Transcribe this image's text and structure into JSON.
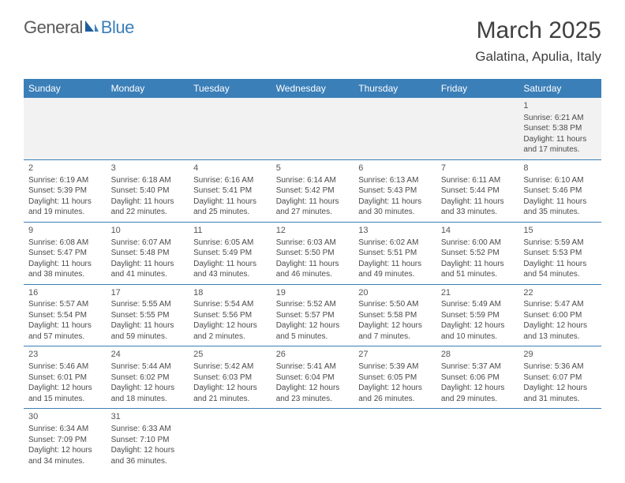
{
  "logo": {
    "general": "General",
    "blue": "Blue"
  },
  "title": "March 2025",
  "location": "Galatina, Apulia, Italy",
  "colors": {
    "header_bg": "#3b7fb8",
    "header_text": "#ffffff",
    "cell_border": "#3b7fb8",
    "empty_bg": "#f2f2f2",
    "text": "#4a4a4a"
  },
  "day_headers": [
    "Sunday",
    "Monday",
    "Tuesday",
    "Wednesday",
    "Thursday",
    "Friday",
    "Saturday"
  ],
  "weeks": [
    [
      null,
      null,
      null,
      null,
      null,
      null,
      {
        "n": "1",
        "sr": "Sunrise: 6:21 AM",
        "ss": "Sunset: 5:38 PM",
        "dl": "Daylight: 11 hours and 17 minutes."
      }
    ],
    [
      {
        "n": "2",
        "sr": "Sunrise: 6:19 AM",
        "ss": "Sunset: 5:39 PM",
        "dl": "Daylight: 11 hours and 19 minutes."
      },
      {
        "n": "3",
        "sr": "Sunrise: 6:18 AM",
        "ss": "Sunset: 5:40 PM",
        "dl": "Daylight: 11 hours and 22 minutes."
      },
      {
        "n": "4",
        "sr": "Sunrise: 6:16 AM",
        "ss": "Sunset: 5:41 PM",
        "dl": "Daylight: 11 hours and 25 minutes."
      },
      {
        "n": "5",
        "sr": "Sunrise: 6:14 AM",
        "ss": "Sunset: 5:42 PM",
        "dl": "Daylight: 11 hours and 27 minutes."
      },
      {
        "n": "6",
        "sr": "Sunrise: 6:13 AM",
        "ss": "Sunset: 5:43 PM",
        "dl": "Daylight: 11 hours and 30 minutes."
      },
      {
        "n": "7",
        "sr": "Sunrise: 6:11 AM",
        "ss": "Sunset: 5:44 PM",
        "dl": "Daylight: 11 hours and 33 minutes."
      },
      {
        "n": "8",
        "sr": "Sunrise: 6:10 AM",
        "ss": "Sunset: 5:46 PM",
        "dl": "Daylight: 11 hours and 35 minutes."
      }
    ],
    [
      {
        "n": "9",
        "sr": "Sunrise: 6:08 AM",
        "ss": "Sunset: 5:47 PM",
        "dl": "Daylight: 11 hours and 38 minutes."
      },
      {
        "n": "10",
        "sr": "Sunrise: 6:07 AM",
        "ss": "Sunset: 5:48 PM",
        "dl": "Daylight: 11 hours and 41 minutes."
      },
      {
        "n": "11",
        "sr": "Sunrise: 6:05 AM",
        "ss": "Sunset: 5:49 PM",
        "dl": "Daylight: 11 hours and 43 minutes."
      },
      {
        "n": "12",
        "sr": "Sunrise: 6:03 AM",
        "ss": "Sunset: 5:50 PM",
        "dl": "Daylight: 11 hours and 46 minutes."
      },
      {
        "n": "13",
        "sr": "Sunrise: 6:02 AM",
        "ss": "Sunset: 5:51 PM",
        "dl": "Daylight: 11 hours and 49 minutes."
      },
      {
        "n": "14",
        "sr": "Sunrise: 6:00 AM",
        "ss": "Sunset: 5:52 PM",
        "dl": "Daylight: 11 hours and 51 minutes."
      },
      {
        "n": "15",
        "sr": "Sunrise: 5:59 AM",
        "ss": "Sunset: 5:53 PM",
        "dl": "Daylight: 11 hours and 54 minutes."
      }
    ],
    [
      {
        "n": "16",
        "sr": "Sunrise: 5:57 AM",
        "ss": "Sunset: 5:54 PM",
        "dl": "Daylight: 11 hours and 57 minutes."
      },
      {
        "n": "17",
        "sr": "Sunrise: 5:55 AM",
        "ss": "Sunset: 5:55 PM",
        "dl": "Daylight: 11 hours and 59 minutes."
      },
      {
        "n": "18",
        "sr": "Sunrise: 5:54 AM",
        "ss": "Sunset: 5:56 PM",
        "dl": "Daylight: 12 hours and 2 minutes."
      },
      {
        "n": "19",
        "sr": "Sunrise: 5:52 AM",
        "ss": "Sunset: 5:57 PM",
        "dl": "Daylight: 12 hours and 5 minutes."
      },
      {
        "n": "20",
        "sr": "Sunrise: 5:50 AM",
        "ss": "Sunset: 5:58 PM",
        "dl": "Daylight: 12 hours and 7 minutes."
      },
      {
        "n": "21",
        "sr": "Sunrise: 5:49 AM",
        "ss": "Sunset: 5:59 PM",
        "dl": "Daylight: 12 hours and 10 minutes."
      },
      {
        "n": "22",
        "sr": "Sunrise: 5:47 AM",
        "ss": "Sunset: 6:00 PM",
        "dl": "Daylight: 12 hours and 13 minutes."
      }
    ],
    [
      {
        "n": "23",
        "sr": "Sunrise: 5:46 AM",
        "ss": "Sunset: 6:01 PM",
        "dl": "Daylight: 12 hours and 15 minutes."
      },
      {
        "n": "24",
        "sr": "Sunrise: 5:44 AM",
        "ss": "Sunset: 6:02 PM",
        "dl": "Daylight: 12 hours and 18 minutes."
      },
      {
        "n": "25",
        "sr": "Sunrise: 5:42 AM",
        "ss": "Sunset: 6:03 PM",
        "dl": "Daylight: 12 hours and 21 minutes."
      },
      {
        "n": "26",
        "sr": "Sunrise: 5:41 AM",
        "ss": "Sunset: 6:04 PM",
        "dl": "Daylight: 12 hours and 23 minutes."
      },
      {
        "n": "27",
        "sr": "Sunrise: 5:39 AM",
        "ss": "Sunset: 6:05 PM",
        "dl": "Daylight: 12 hours and 26 minutes."
      },
      {
        "n": "28",
        "sr": "Sunrise: 5:37 AM",
        "ss": "Sunset: 6:06 PM",
        "dl": "Daylight: 12 hours and 29 minutes."
      },
      {
        "n": "29",
        "sr": "Sunrise: 5:36 AM",
        "ss": "Sunset: 6:07 PM",
        "dl": "Daylight: 12 hours and 31 minutes."
      }
    ],
    [
      {
        "n": "30",
        "sr": "Sunrise: 6:34 AM",
        "ss": "Sunset: 7:09 PM",
        "dl": "Daylight: 12 hours and 34 minutes."
      },
      {
        "n": "31",
        "sr": "Sunrise: 6:33 AM",
        "ss": "Sunset: 7:10 PM",
        "dl": "Daylight: 12 hours and 36 minutes."
      },
      null,
      null,
      null,
      null,
      null
    ]
  ]
}
